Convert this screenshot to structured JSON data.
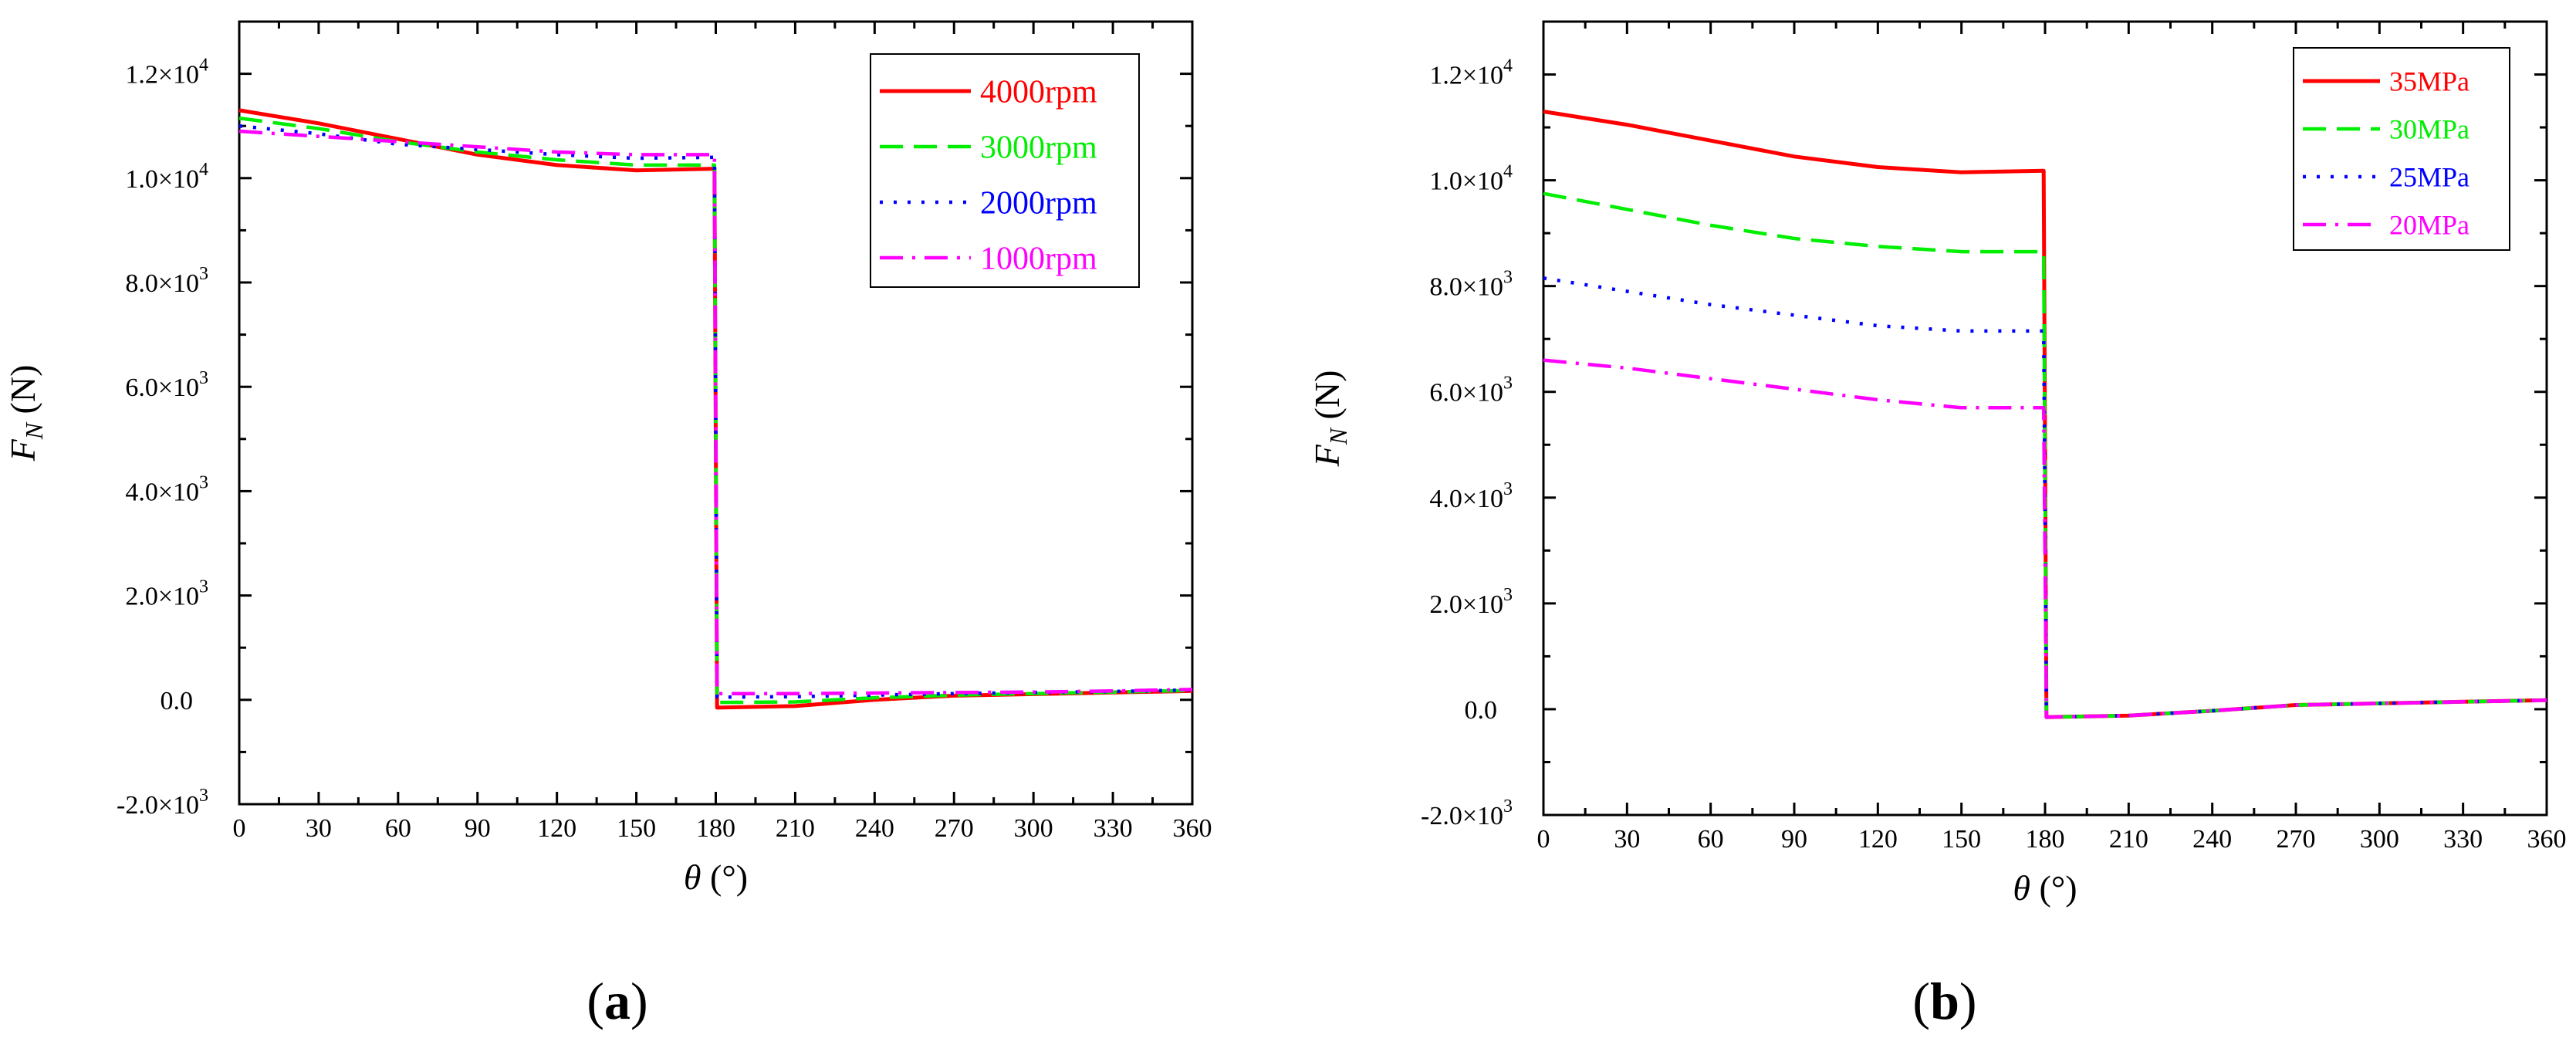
{
  "chart_data": [
    {
      "type": "line",
      "panel_label": "a",
      "xlabel_symbol": "θ",
      "xlabel_unit": "(°)",
      "ylabel_symbol": "F",
      "ylabel_subscript": "N",
      "ylabel_unit": "(N)",
      "xlim": [
        0,
        360
      ],
      "ylim": [
        -2000,
        13000
      ],
      "x_ticks": [
        0,
        30,
        60,
        90,
        120,
        150,
        180,
        210,
        240,
        270,
        300,
        330,
        360
      ],
      "x_tick_labels": [
        "0",
        "30",
        "60",
        "90",
        "120",
        "150",
        "180",
        "210",
        "240",
        "270",
        "300",
        "330",
        "360"
      ],
      "y_ticks": [
        {
          "value": -2000,
          "mantissa": "-2.0",
          "exp": "3"
        },
        {
          "value": 0,
          "mantissa": "0.0",
          "exp": ""
        },
        {
          "value": 2000,
          "mantissa": "2.0",
          "exp": "3"
        },
        {
          "value": 4000,
          "mantissa": "4.0",
          "exp": "3"
        },
        {
          "value": 6000,
          "mantissa": "6.0",
          "exp": "3"
        },
        {
          "value": 8000,
          "mantissa": "8.0",
          "exp": "3"
        },
        {
          "value": 10000,
          "mantissa": "1.0",
          "exp": "4"
        },
        {
          "value": 12000,
          "mantissa": "1.2",
          "exp": "4"
        }
      ],
      "legend_position": "top-right",
      "series": [
        {
          "name": "4000rpm",
          "color": "#ff0000",
          "dash": "solid",
          "x": [
            0,
            30,
            60,
            90,
            120,
            150,
            179.5,
            180.5,
            210,
            240,
            270,
            300,
            330,
            360
          ],
          "y": [
            11300,
            11050,
            10750,
            10450,
            10250,
            10150,
            10180,
            -150,
            -120,
            0,
            80,
            110,
            140,
            170
          ]
        },
        {
          "name": "3000rpm",
          "color": "#00ee00",
          "dash": "dash",
          "x": [
            0,
            30,
            60,
            90,
            120,
            150,
            179.5,
            180.5,
            210,
            240,
            270,
            300,
            330,
            360
          ],
          "y": [
            11150,
            10950,
            10700,
            10500,
            10350,
            10250,
            10250,
            -50,
            -40,
            40,
            90,
            120,
            150,
            180
          ]
        },
        {
          "name": "2000rpm",
          "color": "#0000ff",
          "dash": "dot",
          "x": [
            0,
            30,
            60,
            90,
            120,
            150,
            179.5,
            180.5,
            210,
            240,
            270,
            300,
            330,
            360
          ],
          "y": [
            11000,
            10850,
            10650,
            10550,
            10450,
            10380,
            10400,
            50,
            60,
            90,
            120,
            140,
            160,
            190
          ]
        },
        {
          "name": "1000rpm",
          "color": "#ff00ff",
          "dash": "dashdot",
          "x": [
            0,
            30,
            60,
            90,
            120,
            150,
            179.5,
            180.5,
            210,
            240,
            270,
            300,
            330,
            360
          ],
          "y": [
            10900,
            10800,
            10700,
            10600,
            10500,
            10450,
            10450,
            120,
            120,
            130,
            140,
            150,
            170,
            200
          ]
        }
      ]
    },
    {
      "type": "line",
      "panel_label": "b",
      "xlabel_symbol": "θ",
      "xlabel_unit": "(°)",
      "ylabel_symbol": "F",
      "ylabel_subscript": "N",
      "ylabel_unit": "(N)",
      "xlim": [
        0,
        360
      ],
      "ylim": [
        -2000,
        13000
      ],
      "x_ticks": [
        0,
        30,
        60,
        90,
        120,
        150,
        180,
        210,
        240,
        270,
        300,
        330,
        360
      ],
      "x_tick_labels": [
        "0",
        "30",
        "60",
        "90",
        "120",
        "150",
        "180",
        "210",
        "240",
        "270",
        "300",
        "330",
        "360"
      ],
      "y_ticks": [
        {
          "value": -2000,
          "mantissa": "-2.0",
          "exp": "3"
        },
        {
          "value": 0,
          "mantissa": "0.0",
          "exp": ""
        },
        {
          "value": 2000,
          "mantissa": "2.0",
          "exp": "3"
        },
        {
          "value": 4000,
          "mantissa": "4.0",
          "exp": "3"
        },
        {
          "value": 6000,
          "mantissa": "6.0",
          "exp": "3"
        },
        {
          "value": 8000,
          "mantissa": "8.0",
          "exp": "3"
        },
        {
          "value": 10000,
          "mantissa": "1.0",
          "exp": "4"
        },
        {
          "value": 12000,
          "mantissa": "1.2",
          "exp": "4"
        }
      ],
      "legend_position": "top-right",
      "series": [
        {
          "name": "35MPa",
          "color": "#ff0000",
          "dash": "solid",
          "x": [
            0,
            30,
            60,
            90,
            120,
            150,
            179.5,
            180.5,
            210,
            240,
            270,
            300,
            330,
            360
          ],
          "y": [
            11300,
            11050,
            10750,
            10450,
            10250,
            10150,
            10180,
            -150,
            -120,
            -30,
            80,
            110,
            140,
            170
          ]
        },
        {
          "name": "30MPa",
          "color": "#00ee00",
          "dash": "dash",
          "x": [
            0,
            30,
            60,
            90,
            120,
            150,
            179.5,
            180.5,
            210,
            240,
            270,
            300,
            330,
            360
          ],
          "y": [
            9750,
            9450,
            9150,
            8900,
            8750,
            8650,
            8650,
            -150,
            -120,
            -30,
            80,
            110,
            140,
            170
          ]
        },
        {
          "name": "25MPa",
          "color": "#0000ff",
          "dash": "dot",
          "x": [
            0,
            30,
            60,
            90,
            120,
            150,
            179.5,
            180.5,
            210,
            240,
            270,
            300,
            330,
            360
          ],
          "y": [
            8150,
            7900,
            7650,
            7450,
            7250,
            7150,
            7150,
            -150,
            -120,
            -30,
            80,
            110,
            140,
            170
          ]
        },
        {
          "name": "20MPa",
          "color": "#ff00ff",
          "dash": "dashdot",
          "x": [
            0,
            30,
            60,
            90,
            120,
            150,
            179.5,
            180.5,
            210,
            240,
            270,
            300,
            330,
            360
          ],
          "y": [
            6600,
            6450,
            6250,
            6050,
            5850,
            5700,
            5700,
            -150,
            -120,
            -30,
            80,
            110,
            140,
            170
          ]
        }
      ]
    }
  ]
}
